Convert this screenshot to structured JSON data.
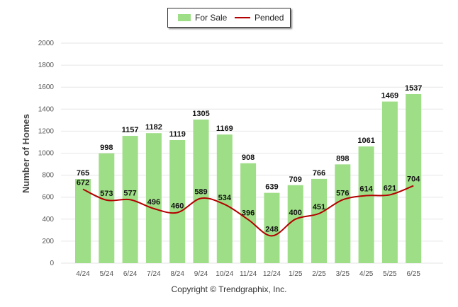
{
  "colors": {
    "bar": "#9ede86",
    "line": "#b30000",
    "grid": "#e6e6e6",
    "axis_text": "#555555"
  },
  "legend": {
    "for_sale": "For Sale",
    "pended": "Pended"
  },
  "footer": "Copyright © Trendgraphix, Inc.",
  "chart_data": {
    "type": "bar",
    "categories": [
      "4/24",
      "5/24",
      "6/24",
      "7/24",
      "8/24",
      "9/24",
      "10/24",
      "11/24",
      "12/24",
      "1/25",
      "2/25",
      "3/25",
      "4/25",
      "5/25",
      "6/25"
    ],
    "series": [
      {
        "name": "For Sale",
        "type": "bar",
        "values": [
          765,
          998,
          1157,
          1182,
          1119,
          1305,
          1169,
          908,
          639,
          709,
          766,
          898,
          1061,
          1469,
          1537
        ]
      },
      {
        "name": "Pended",
        "type": "line",
        "values": [
          672,
          573,
          577,
          496,
          460,
          589,
          534,
          396,
          248,
          400,
          451,
          576,
          614,
          621,
          704
        ]
      }
    ],
    "ylabel": "Number of Homes",
    "xlabel": "",
    "ylim": [
      0,
      2000
    ],
    "yticks": [
      0,
      200,
      400,
      600,
      800,
      1000,
      1200,
      1400,
      1600,
      1800,
      2000
    ],
    "grid": true,
    "legend_position": "top-center"
  }
}
